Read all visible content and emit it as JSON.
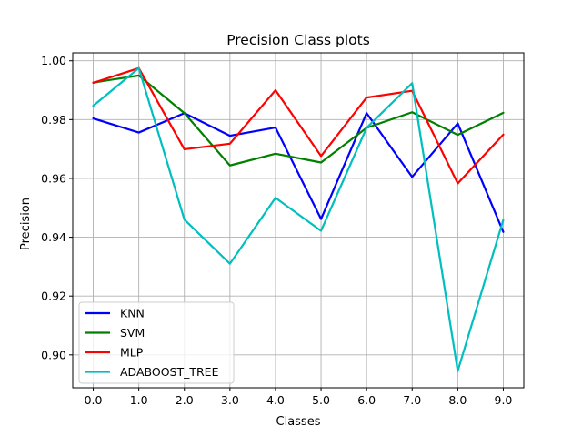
{
  "chart_data": {
    "type": "line",
    "title": "Precision Class plots",
    "xlabel": "Classes",
    "ylabel": "Precision",
    "x": [
      0,
      1,
      2,
      3,
      4,
      5,
      6,
      7,
      8,
      9
    ],
    "x_tick_labels": [
      "0.0",
      "1.0",
      "2.0",
      "3.0",
      "4.0",
      "5.0",
      "6.0",
      "7.0",
      "8.0",
      "9.0"
    ],
    "y_ticks": [
      0.9,
      0.92,
      0.94,
      0.96,
      0.98,
      1.0
    ],
    "y_tick_labels": [
      "0.90",
      "0.92",
      "0.94",
      "0.96",
      "0.98",
      "1.00"
    ],
    "xlim": [
      -0.45,
      9.45
    ],
    "ylim": [
      0.8888,
      1.0027
    ],
    "grid": true,
    "legend_position": "lower-left",
    "series": [
      {
        "name": "KNN",
        "color": "#0000ff",
        "values": [
          0.9804,
          0.9756,
          0.9822,
          0.9745,
          0.9773,
          0.9462,
          0.9822,
          0.9605,
          0.9787,
          0.9418
        ]
      },
      {
        "name": "SVM",
        "color": "#008000",
        "values": [
          0.9926,
          0.995,
          0.9822,
          0.9644,
          0.9684,
          0.9654,
          0.9772,
          0.9825,
          0.9748,
          0.9823
        ]
      },
      {
        "name": "MLP",
        "color": "#ff0000",
        "values": [
          0.9925,
          0.9975,
          0.9699,
          0.9718,
          0.99,
          0.9676,
          0.9875,
          0.9898,
          0.9583,
          0.9749
        ]
      },
      {
        "name": "ADABOOST_TREE",
        "color": "#00bfbf",
        "values": [
          0.9847,
          0.9975,
          0.946,
          0.931,
          0.9534,
          0.9422,
          0.9772,
          0.9924,
          0.8945,
          0.9459
        ]
      }
    ]
  }
}
